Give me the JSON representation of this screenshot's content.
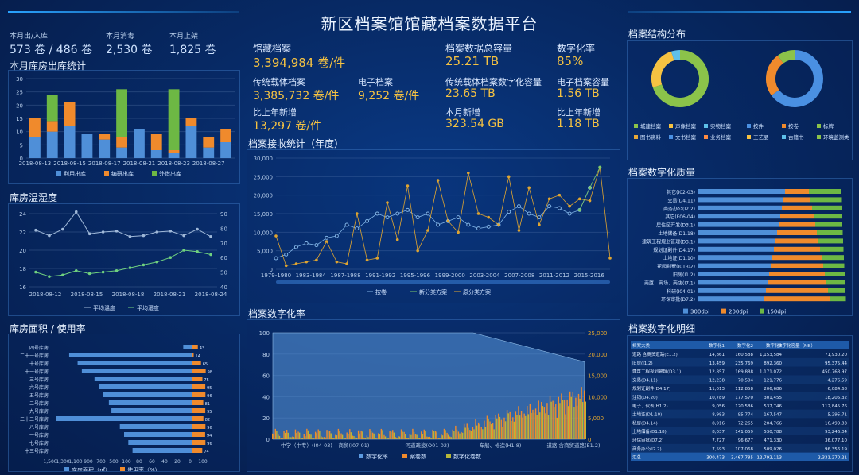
{
  "header": {
    "title": "新区档案馆馆藏档案数据平台"
  },
  "top_stats": [
    {
      "label": "本月出/入库",
      "value": "573 卷 / 486 卷"
    },
    {
      "label": "本月消毒",
      "value": "2,530 卷"
    },
    {
      "label": "本月上架",
      "value": "1,825 卷"
    }
  ],
  "center_stats": [
    {
      "label": "馆藏档案",
      "value": "3,394,984 卷/件"
    },
    {
      "label": "传统载体档案",
      "value": "3,385,732 卷/件"
    },
    {
      "label": "电子档案",
      "value": "9,252 卷/件"
    },
    {
      "label": "比上年新增",
      "value": "13,297 卷/件"
    },
    {
      "label": "档案数据总容量",
      "value": "25.21 TB"
    },
    {
      "label": "传统载体档案数字化容量",
      "value": "23.65 TB"
    },
    {
      "label": "本月新增",
      "value": "323.54 GB"
    },
    {
      "label": "数字化率",
      "value": "85%"
    },
    {
      "label": "电子档案容量",
      "value": "1.56 TB"
    },
    {
      "label": "比上年新增",
      "value": "1.18 TB"
    }
  ],
  "panels": {
    "warehouse_stats": "本月库房出库统计",
    "temp_humidity": "库房温湿度",
    "area_usage": "库房面积 / 使用率",
    "receive_stats": "档案接收统计（年度）",
    "digitization_rate": "档案数字化率",
    "structure": "档案结构分布",
    "quality": "档案数字化质量",
    "detail": "档案数字化明细"
  },
  "warehouse_chart": {
    "type": "bar",
    "categories": [
      "2018-08-13",
      "",
      "2018-08-15",
      "",
      "2018-08-17",
      "",
      "2018-08-21",
      "",
      "2018-08-23",
      "",
      "2018-08-27",
      ""
    ],
    "tick_labels": [
      "2018-08-13",
      "2018-08-15",
      "2018-08-17",
      "2018-08-21",
      "2018-08-23",
      "2018-08-27"
    ],
    "series": [
      {
        "name": "利用出库",
        "values": [
          8,
          10,
          12,
          9,
          7,
          4,
          11,
          3,
          2,
          12,
          4,
          6
        ]
      },
      {
        "name": "编研出库",
        "values": [
          7,
          4,
          9,
          0,
          2,
          4,
          0,
          6,
          1,
          3,
          4,
          5
        ]
      },
      {
        "name": "外借出库",
        "values": [
          0,
          10,
          0,
          0,
          0,
          18,
          0,
          0,
          23,
          0,
          0,
          0
        ]
      }
    ],
    "ylim": [
      0,
      30
    ],
    "yticks": [
      0,
      5,
      10,
      15,
      20,
      25,
      30
    ],
    "colors": [
      "#4f8fd8",
      "#f08a2c",
      "#6db844"
    ]
  },
  "temp_chart": {
    "type": "line",
    "tick_labels": [
      "2018-08-12",
      "2018-08-15",
      "2018-08-18",
      "2018-08-21",
      "2018-08-24"
    ],
    "series": [
      {
        "name": "平均温度",
        "values": [
          22.2,
          21.6,
          22.3,
          24.2,
          21.8,
          22,
          22.1,
          21.5,
          21.6,
          22,
          22.1,
          21.6,
          22.3,
          21.5
        ]
      },
      {
        "name": "平均湿度",
        "values": [
          50,
          47,
          48,
          51,
          49,
          50,
          51,
          53,
          55,
          57,
          60,
          65,
          64,
          62
        ]
      }
    ],
    "y_left": [
      16,
      18,
      20,
      22,
      24
    ],
    "y_right": [
      40,
      50,
      60,
      70,
      80,
      90
    ],
    "colors": [
      "#9fb8d8",
      "#6fd17f"
    ]
  },
  "area_chart": {
    "type": "bar",
    "categories": [
      "四号库房",
      "二十一号库房",
      "十号库房",
      "十一号库房",
      "三号库房",
      "六号库房",
      "五号库房",
      "二号库房",
      "九号库房",
      "二十二号库房",
      "八号库房",
      "一号库房",
      "七号库房",
      "十三号库房"
    ],
    "series": [
      {
        "name": "库房面积（㎡）",
        "values": [
          100,
          1450,
          1350,
          1300,
          1150,
          1100,
          1050,
          980,
          950,
          1600,
          850,
          800,
          750,
          700
        ]
      },
      {
        "name": "使用率（%）",
        "values": [
          43,
          14,
          65,
          98,
          75,
          95,
          96,
          81,
          95,
          82,
          96,
          94,
          96,
          74
        ]
      }
    ],
    "tick_labels": [
      "1,500",
      "1,300",
      "1,100",
      "900",
      "700",
      "500",
      "100",
      "80",
      "60",
      "40",
      "20",
      "0",
      "100"
    ],
    "colors": [
      "#4f8fd8",
      "#f08a2c"
    ]
  },
  "receive_chart": {
    "type": "line",
    "tick_labels": [
      "1979-1980",
      "1983-1984",
      "1987-1988",
      "1991-1992",
      "1995-1996",
      "1999-2000",
      "2003-2004",
      "2007-2008",
      "2011-2012",
      "2015-2016"
    ],
    "yticks": [
      "0",
      "5,000",
      "10,000",
      "15,000",
      "20,000",
      "25,000",
      "30,000"
    ],
    "ylim": [
      0,
      30000
    ],
    "series": [
      {
        "name": "按卷",
        "values": [
          3000,
          4000,
          6000,
          7000,
          6500,
          8500,
          9000,
          12000,
          11000,
          13000,
          15000,
          14000,
          15000,
          16000,
          14000,
          15000,
          12000,
          13000,
          14000,
          12000,
          11000,
          11500,
          12000,
          15500,
          17000,
          15000,
          14000,
          17000,
          16500,
          15000,
          16000,
          22000
        ]
      },
      {
        "name": "新分类方案",
        "values": [
          0,
          0,
          0,
          0,
          0,
          0,
          0,
          0,
          0,
          0,
          0,
          0,
          0,
          0,
          0,
          0,
          0,
          0,
          0,
          0,
          0,
          0,
          0,
          0,
          0,
          0,
          0,
          0,
          0,
          0,
          16000,
          22000,
          27500
        ]
      },
      {
        "name": "原分类方案",
        "values": [
          9000,
          1000,
          1500,
          2000,
          2500,
          7500,
          2000,
          1500,
          15000,
          2500,
          3000,
          18000,
          8000,
          22500,
          5000,
          10500,
          24000,
          13000,
          10000,
          26000,
          15000,
          14000,
          12000,
          25000,
          10500,
          22000,
          12000,
          19000,
          20000,
          17000,
          19000,
          18500,
          27500,
          3000
        ]
      }
    ],
    "colors": [
      "#7fb3e6",
      "#7cc96b",
      "#e0a530"
    ]
  },
  "digit_chart": {
    "type": "bar",
    "tick_labels": [
      "中学（中专）(I04-03)",
      "商贸(I07-01)",
      "河道疏浚(O01-02)",
      "车船、修造(H1.8)",
      "道路 含商贸道路(E1.2)"
    ],
    "y_left": [
      "0",
      "20",
      "40",
      "60",
      "80",
      "100"
    ],
    "y_right": [
      "0",
      "5,000",
      "10,000",
      "15,000",
      "20,000",
      "25,000"
    ],
    "legend": [
      "数字化率",
      "案卷数",
      "数字化卷数"
    ],
    "colors": [
      "#5b9ae0",
      "#f08a2c",
      "#b8b83a"
    ]
  },
  "structure": {
    "donut1": {
      "series": [
        {
          "name": "城建档案",
          "value": 70
        },
        {
          "name": "声像档案",
          "value": 25
        },
        {
          "name": "实物档案",
          "value": 5
        }
      ]
    },
    "donut2": {
      "series": [
        {
          "name": "按件",
          "value": 65
        },
        {
          "name": "按卷",
          "value": 25
        },
        {
          "name": "标牌",
          "value": 10
        }
      ]
    },
    "legend1": [
      "城建档案",
      "声像档案",
      "实物档案",
      "图书资料",
      "文书档案",
      "业务档案"
    ],
    "legend2": [
      "按件",
      "按卷",
      "标牌",
      "工艺品",
      "古籍书",
      "环境监测类"
    ],
    "colors1": [
      "#8bc34a",
      "#f5c242",
      "#5ec0e8",
      "#e8a838",
      "#4a90e2",
      "#ff8c42"
    ],
    "colors2": [
      "#4a90e2",
      "#f08a2c",
      "#8bc34a",
      "#f5c242",
      "#5ec0e8",
      "#8bc34a"
    ]
  },
  "quality": {
    "categories": [
      "其它(I02-03)",
      "交易(D4.11)",
      "商务办公(I2.2)",
      "其它(F06-04)",
      "居住区开发(D3.1)",
      "土地储备(D1.18)",
      "建筑工程规划管理(D3.1)",
      "规划证副件(D4.17)",
      "土地证(D1.10)",
      "花园别墅(I01-02)",
      "旧房(I1.2)",
      "商厦、商场、商店(I7.1)",
      "科研(I04-01)",
      "环保审批(D7.2)"
    ],
    "legend": [
      "300dpi",
      "200dpi",
      "150dpi"
    ],
    "colors": [
      "#4f8fd8",
      "#f08a2c",
      "#6db844"
    ]
  },
  "detail_table": {
    "headers": [
      "档案大类",
      "数字化1",
      "数字化2",
      "数字化3",
      "数字化容量（MB）"
    ],
    "rows": [
      [
        "道路 含商贸道路(E1.2)",
        "14,861",
        "160,588",
        "1,153,584",
        "71,930.20"
      ],
      [
        "旧房(I1.2)",
        "13,459",
        "235,769",
        "892,360",
        "95,375.44"
      ],
      [
        "建筑工程规划管理(D3.1)",
        "12,857",
        "169,888",
        "1,171,072",
        "450,763.97"
      ],
      [
        "交易(D4.11)",
        "12,238",
        "70,504",
        "121,776",
        "4,276.59"
      ],
      [
        "规划证副件(D4.17)",
        "11,013",
        "112,858",
        "206,686",
        "6,084.68"
      ],
      [
        "注销(D4.20)",
        "10,789",
        "177,570",
        "301,455",
        "18,205.32"
      ],
      [
        "电子、仪表(H1.2)",
        "9,056",
        "120,586",
        "537,746",
        "112,845.76"
      ],
      [
        "土地证(D1.10)",
        "8,983",
        "95,774",
        "167,547",
        "5,295.71"
      ],
      [
        "私房(D4.14)",
        "8,916",
        "72,265",
        "204,766",
        "16,499.83"
      ],
      [
        "土地储备(D1.18)",
        "8,037",
        "141,059",
        "530,788",
        "93,246.04"
      ],
      [
        "环保审批(D7.2)",
        "7,727",
        "96,677",
        "471,330",
        "36,077.10"
      ],
      [
        "商务办公(I2.2)",
        "7,593",
        "107,068",
        "509,026",
        "96,356.19"
      ]
    ],
    "total": [
      "汇总",
      "300,473",
      "3,467,785",
      "12,792,113",
      "2,331,270.21"
    ]
  }
}
